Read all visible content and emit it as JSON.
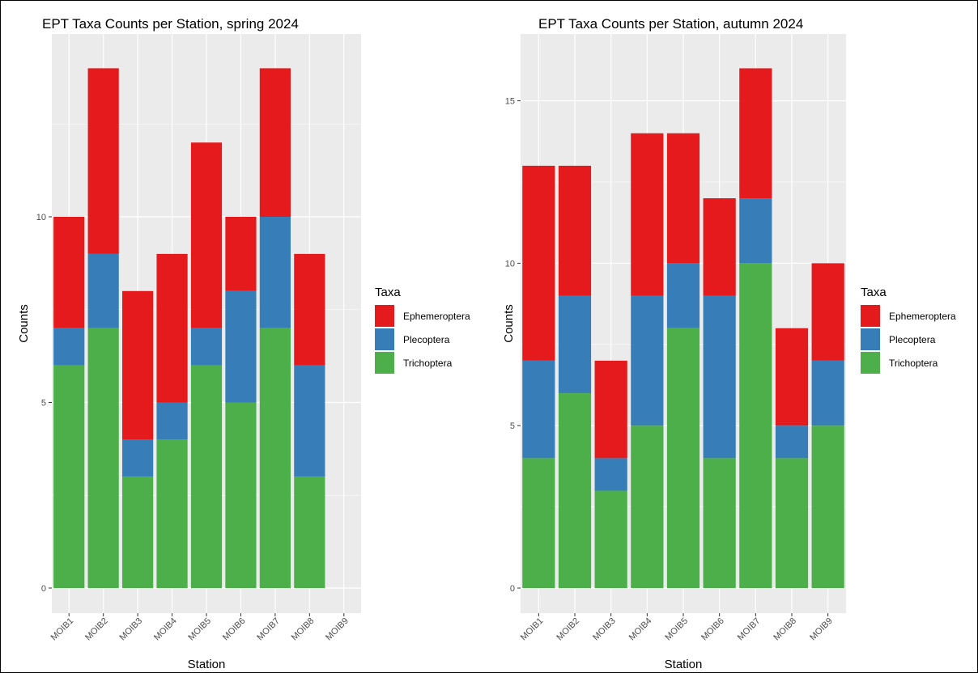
{
  "chart_data": [
    {
      "type": "bar",
      "stacked": true,
      "title": "EPT Taxa Counts per Station, spring 2024",
      "xlabel": "Station",
      "ylabel": "Counts",
      "ylim": [
        0,
        14.7
      ],
      "yticks": [
        0,
        5,
        10
      ],
      "categories": [
        "MOIB1",
        "MOIB2",
        "MOIB3",
        "MOIB4",
        "MOIB5",
        "MOIB6",
        "MOIB7",
        "MOIB8",
        "MOIB9"
      ],
      "series": [
        {
          "name": "Trichoptera",
          "color": "#4DAF4A",
          "values": [
            6,
            7,
            3,
            4,
            6,
            5,
            7,
            3,
            0
          ]
        },
        {
          "name": "Plecoptera",
          "color": "#377EB8",
          "values": [
            1,
            2,
            1,
            1,
            1,
            3,
            3,
            3,
            0
          ]
        },
        {
          "name": "Ephemeroptera",
          "color": "#E41A1C",
          "values": [
            3,
            5,
            4,
            4,
            5,
            2,
            4,
            3,
            0
          ]
        }
      ],
      "legend": {
        "title": "Taxa",
        "position": "right",
        "items": [
          "Ephemeroptera",
          "Plecoptera",
          "Trichoptera"
        ]
      },
      "grid": true,
      "panel_background": "#EBEBEB"
    },
    {
      "type": "bar",
      "stacked": true,
      "title": "EPT Taxa Counts per Station, autumn 2024",
      "xlabel": "Station",
      "ylabel": "Counts",
      "ylim": [
        0,
        16.8
      ],
      "yticks": [
        0,
        5,
        10,
        15
      ],
      "categories": [
        "MOIB1",
        "MOIB2",
        "MOIB3",
        "MOIB4",
        "MOIB5",
        "MOIB6",
        "MOIB7",
        "MOIB8",
        "MOIB9"
      ],
      "series": [
        {
          "name": "Trichoptera",
          "color": "#4DAF4A",
          "values": [
            4,
            6,
            3,
            5,
            8,
            4,
            10,
            4,
            5
          ]
        },
        {
          "name": "Plecoptera",
          "color": "#377EB8",
          "values": [
            3,
            3,
            1,
            4,
            2,
            5,
            2,
            1,
            2
          ]
        },
        {
          "name": "Ephemeroptera",
          "color": "#E41A1C",
          "values": [
            6,
            4,
            3,
            5,
            4,
            3,
            4,
            3,
            3
          ]
        }
      ],
      "legend": {
        "title": "Taxa",
        "position": "right",
        "items": [
          "Ephemeroptera",
          "Plecoptera",
          "Trichoptera"
        ]
      },
      "grid": true,
      "panel_background": "#EBEBEB"
    }
  ]
}
